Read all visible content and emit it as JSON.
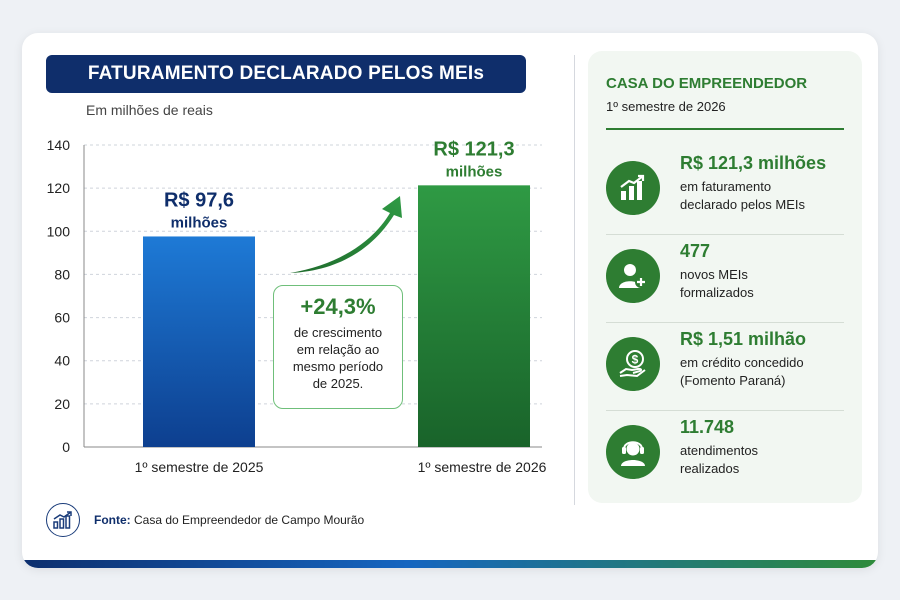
{
  "header": {
    "title": "FATURAMENTO DECLARADO PELOS MEIs",
    "subtitle": "Em milhões de reais"
  },
  "chart_data": {
    "type": "bar",
    "categories": [
      "1º semestre de 2025",
      "1º semestre de 2026"
    ],
    "values": [
      97.6,
      121.3
    ],
    "data_labels": [
      [
        "R$ 97,6",
        "milhões"
      ],
      [
        "R$ 121,3",
        "milhões"
      ]
    ],
    "ylim": [
      0,
      140
    ],
    "yticks": [
      "0",
      "20",
      "40",
      "60",
      "80",
      "100",
      "120",
      "140"
    ],
    "grid": true,
    "colors": [
      "#1565c0",
      "#2e7d32"
    ],
    "label_colors": [
      "#0f2e6b",
      "#2e7d32"
    ]
  },
  "growth": {
    "value": "+24,3%",
    "lines": [
      "de crescimento",
      "em relação ao",
      "mesmo período",
      "de 2025."
    ]
  },
  "source": {
    "label": "Fonte:",
    "text": "Casa do Empreendedor de Campo Mourão",
    "icon": "chart-growth-icon"
  },
  "panel": {
    "title": "CASA DO EMPREENDEDOR",
    "subtitle": "1º semestre de 2026",
    "stats": [
      {
        "icon": "bar-chart-growth-icon",
        "value": "R$ 121,3 milhões",
        "lines": [
          "em faturamento",
          "declarado pelos MEIs"
        ]
      },
      {
        "icon": "add-user-icon",
        "value": "477",
        "lines": [
          "novos MEIs",
          "formalizados"
        ]
      },
      {
        "icon": "money-hand-icon",
        "value": "R$ 1,51 milhão",
        "lines": [
          "em crédito concedido",
          "(Fomento Paraná)"
        ]
      },
      {
        "icon": "headset-agent-icon",
        "value": "11.748",
        "lines": [
          "atendimentos",
          "realizados"
        ]
      }
    ]
  },
  "colors": {
    "navy": "#0f2e6b",
    "blue": "#1565c0",
    "green": "#2e7d32"
  }
}
